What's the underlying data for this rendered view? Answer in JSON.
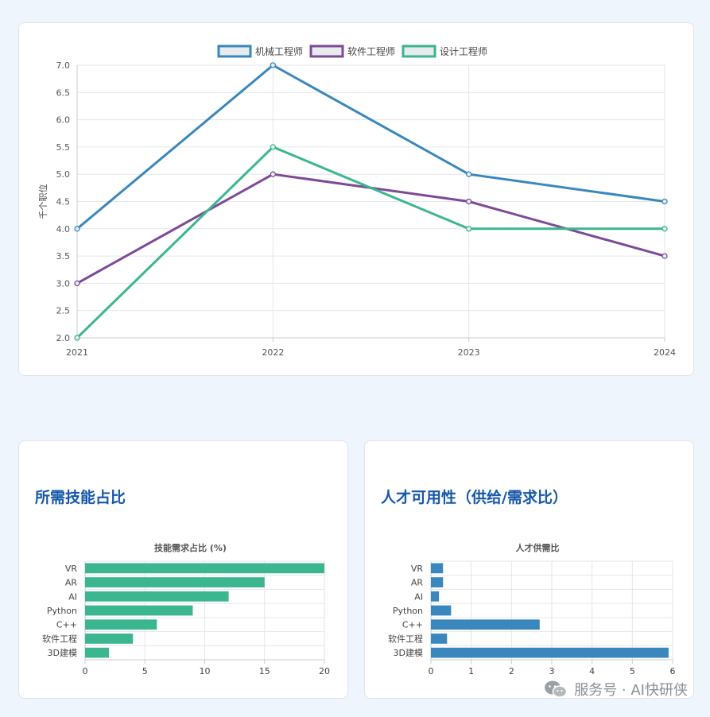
{
  "line_card": {
    "chart_data": {
      "type": "line",
      "x": [
        "2021",
        "2022",
        "2023",
        "2024"
      ],
      "series": [
        {
          "name": "机械工程师",
          "color": "#3a87bd",
          "values": [
            4.0,
            7.0,
            5.0,
            4.5
          ]
        },
        {
          "name": "软件工程师",
          "color": "#7d4a98",
          "values": [
            3.0,
            5.0,
            4.5,
            3.5
          ]
        },
        {
          "name": "设计工程师",
          "color": "#3cb68e",
          "values": [
            2.0,
            5.5,
            4.0,
            4.0
          ]
        }
      ],
      "ylabel": "千个职位",
      "ylim": [
        2.0,
        7.0
      ],
      "yticks": [
        "2.0",
        "2.5",
        "3.0",
        "3.5",
        "4.0",
        "4.5",
        "5.0",
        "5.5",
        "6.0",
        "6.5",
        "7.0"
      ],
      "grid": true,
      "legend": "top-center"
    }
  },
  "skills_card": {
    "heading": "所需技能占比",
    "chart_data": {
      "type": "bar",
      "orientation": "horizontal",
      "title": "技能需求占比 (%)",
      "categories": [
        "VR",
        "AR",
        "AI",
        "Python",
        "C++",
        "软件工程",
        "3D建模"
      ],
      "values": [
        20,
        15,
        12,
        9,
        6,
        4,
        2
      ],
      "xlim": [
        0,
        20
      ],
      "xticks": [
        "0",
        "5",
        "10",
        "15",
        "20"
      ],
      "color": "#3cb68e",
      "grid": true
    }
  },
  "talent_card": {
    "heading": "人才可用性（供给/需求比）",
    "chart_data": {
      "type": "bar",
      "orientation": "horizontal",
      "title": "人才供需比",
      "categories": [
        "VR",
        "AR",
        "AI",
        "Python",
        "C++",
        "软件工程",
        "3D建模"
      ],
      "values": [
        0.3,
        0.3,
        0.2,
        0.5,
        2.7,
        0.4,
        5.9
      ],
      "xlim": [
        0,
        6
      ],
      "xticks": [
        "0",
        "1",
        "2",
        "3",
        "4",
        "5",
        "6"
      ],
      "color": "#3a87bd",
      "grid": true
    }
  },
  "watermark": {
    "icon": "wechat-icon",
    "text": "服务号 · AI快研侠"
  }
}
